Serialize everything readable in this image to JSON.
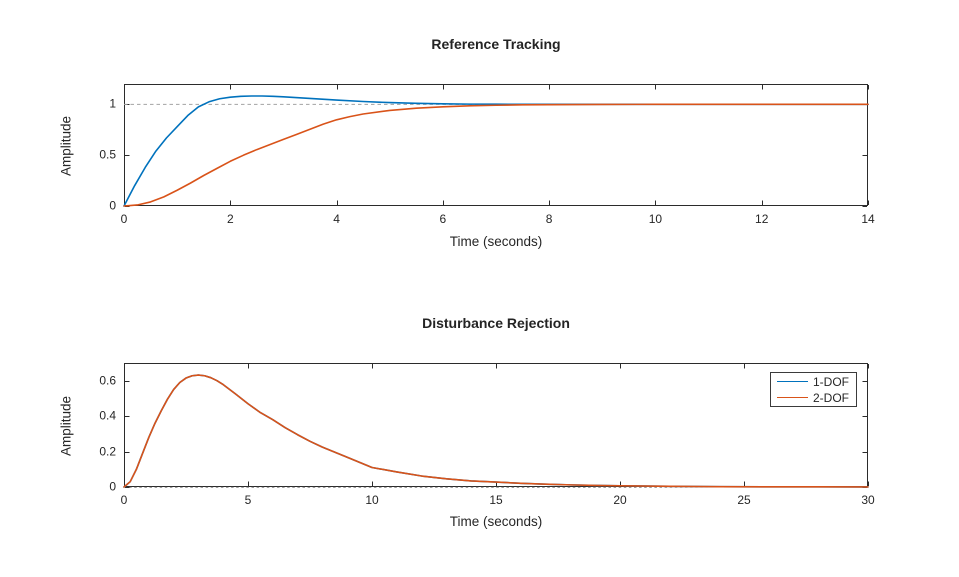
{
  "figure": {
    "background": "#ffffff",
    "axis_color": "#2b2b2b",
    "text_color": "#262626"
  },
  "colors": {
    "dof1_blue": "#0072BD",
    "dof2_orange": "#D95319"
  },
  "legend": {
    "entries": [
      "1-DOF",
      "2-DOF"
    ],
    "position": "northeast-inside-bottom-chart"
  },
  "chart_data": [
    {
      "type": "line",
      "title": "Reference Tracking",
      "xlabel": "Time (seconds)",
      "ylabel": "Amplitude",
      "xlim": [
        0,
        14
      ],
      "ylim": [
        0,
        1.2
      ],
      "grid": false,
      "xticks": [
        {
          "v": 0,
          "label": "0"
        },
        {
          "v": 2,
          "label": "2"
        },
        {
          "v": 4,
          "label": "4"
        },
        {
          "v": 6,
          "label": "6"
        },
        {
          "v": 8,
          "label": "8"
        },
        {
          "v": 10,
          "label": "10"
        },
        {
          "v": 12,
          "label": "12"
        },
        {
          "v": 14,
          "label": "14"
        }
      ],
      "yticks": [
        {
          "v": 0,
          "label": "0"
        },
        {
          "v": 0.5,
          "label": "0.5"
        },
        {
          "v": 1,
          "label": "1"
        }
      ],
      "ref_line": {
        "y": 1,
        "color": "#a3a3a3",
        "dash": "3.5,3"
      },
      "series": [
        {
          "name": "1-DOF",
          "color": "#0072BD",
          "x": [
            0,
            0.2,
            0.4,
            0.6,
            0.8,
            1,
            1.2,
            1.4,
            1.6,
            1.8,
            2,
            2.2,
            2.4,
            2.6,
            2.8,
            3,
            3.5,
            4,
            4.5,
            5,
            5.5,
            6,
            6.5,
            7,
            8,
            9,
            10,
            12,
            14
          ],
          "y": [
            0,
            0.2,
            0.38,
            0.54,
            0.67,
            0.78,
            0.89,
            0.975,
            1.025,
            1.055,
            1.07,
            1.079,
            1.082,
            1.082,
            1.079,
            1.074,
            1.058,
            1.042,
            1.028,
            1.017,
            1.01,
            1.005,
            1.002,
            1.001,
            1.0,
            1.0,
            1.0,
            1.0,
            1.0
          ]
        },
        {
          "name": "2-DOF",
          "color": "#D95319",
          "x": [
            0,
            0.25,
            0.5,
            0.75,
            1,
            1.25,
            1.5,
            1.75,
            2,
            2.25,
            2.5,
            2.75,
            3,
            3.25,
            3.5,
            3.75,
            4,
            4.25,
            4.5,
            5,
            5.5,
            6,
            6.5,
            7,
            7.5,
            8,
            9,
            10,
            12,
            14
          ],
          "y": [
            0,
            0.01,
            0.04,
            0.09,
            0.155,
            0.225,
            0.3,
            0.37,
            0.44,
            0.5,
            0.555,
            0.605,
            0.655,
            0.705,
            0.755,
            0.805,
            0.848,
            0.879,
            0.905,
            0.94,
            0.962,
            0.976,
            0.985,
            0.991,
            0.995,
            0.997,
            0.999,
            1.0,
            1.0,
            1.0
          ]
        }
      ]
    },
    {
      "type": "line",
      "title": "Disturbance Rejection",
      "xlabel": "Time (seconds)",
      "ylabel": "Amplitude",
      "xlim": [
        0,
        30
      ],
      "ylim": [
        0,
        0.7
      ],
      "grid": false,
      "xticks": [
        {
          "v": 0,
          "label": "0"
        },
        {
          "v": 5,
          "label": "5"
        },
        {
          "v": 10,
          "label": "10"
        },
        {
          "v": 15,
          "label": "15"
        },
        {
          "v": 20,
          "label": "20"
        },
        {
          "v": 25,
          "label": "25"
        },
        {
          "v": 30,
          "label": "30"
        }
      ],
      "yticks": [
        {
          "v": 0,
          "label": "0"
        },
        {
          "v": 0.2,
          "label": "0.2"
        },
        {
          "v": 0.4,
          "label": "0.4"
        },
        {
          "v": 0.6,
          "label": "0.6"
        }
      ],
      "ref_line": {
        "y": 0,
        "color": "#3c3c3c",
        "dash": "2.5,2.6"
      },
      "note": "1-DOF and 2-DOF responses coincide; orange drawn on top of blue",
      "series": [
        {
          "name": "1-DOF",
          "color": "#0072BD",
          "x": [
            0,
            0.25,
            0.5,
            0.75,
            1,
            1.25,
            1.5,
            1.75,
            2,
            2.25,
            2.5,
            2.75,
            3,
            3.25,
            3.5,
            3.75,
            4,
            4.5,
            5,
            5.5,
            6,
            6.5,
            7,
            7.5,
            8,
            9,
            10,
            11,
            12,
            13,
            14,
            15,
            16,
            17,
            18,
            19,
            20,
            22,
            24,
            26,
            28,
            30
          ],
          "y": [
            0,
            0.03,
            0.1,
            0.19,
            0.28,
            0.36,
            0.43,
            0.495,
            0.55,
            0.59,
            0.615,
            0.628,
            0.632,
            0.628,
            0.617,
            0.6,
            0.578,
            0.525,
            0.47,
            0.42,
            0.38,
            0.335,
            0.295,
            0.258,
            0.225,
            0.168,
            0.11,
            0.085,
            0.062,
            0.046,
            0.034,
            0.028,
            0.021,
            0.016,
            0.012,
            0.009,
            0.007,
            0.004,
            0.002,
            0.001,
            0.001,
            0.0005
          ]
        },
        {
          "name": "2-DOF",
          "color": "#D95319",
          "x": [
            0,
            0.25,
            0.5,
            0.75,
            1,
            1.25,
            1.5,
            1.75,
            2,
            2.25,
            2.5,
            2.75,
            3,
            3.25,
            3.5,
            3.75,
            4,
            4.5,
            5,
            5.5,
            6,
            6.5,
            7,
            7.5,
            8,
            9,
            10,
            11,
            12,
            13,
            14,
            15,
            16,
            17,
            18,
            19,
            20,
            22,
            24,
            26,
            28,
            30
          ],
          "y": [
            0,
            0.03,
            0.1,
            0.19,
            0.28,
            0.36,
            0.43,
            0.495,
            0.55,
            0.59,
            0.615,
            0.628,
            0.632,
            0.628,
            0.617,
            0.6,
            0.578,
            0.525,
            0.47,
            0.42,
            0.38,
            0.335,
            0.295,
            0.258,
            0.225,
            0.168,
            0.11,
            0.085,
            0.062,
            0.046,
            0.034,
            0.028,
            0.021,
            0.016,
            0.012,
            0.009,
            0.007,
            0.004,
            0.002,
            0.001,
            0.001,
            0.0005
          ]
        }
      ]
    }
  ]
}
